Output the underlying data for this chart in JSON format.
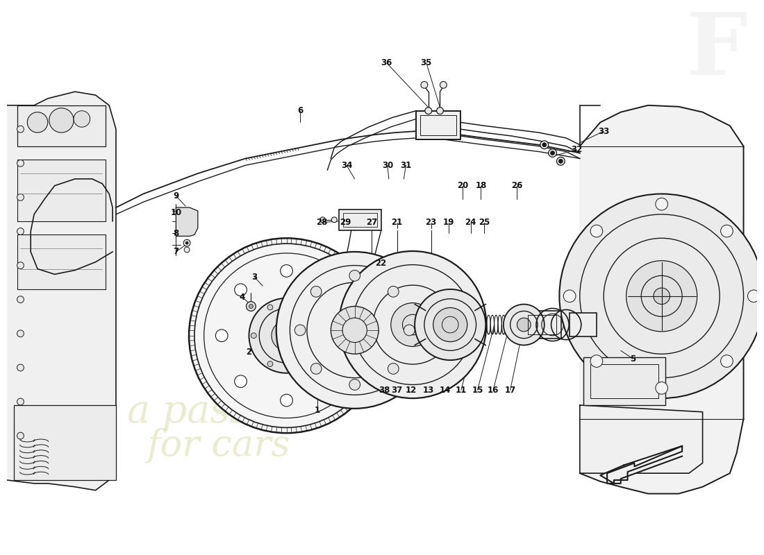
{
  "bg_color": "#ffffff",
  "lc": "#1a1a1a",
  "wm_color": "#d8d8a0",
  "wm_alpha": 0.5,
  "fig_w": 11.0,
  "fig_h": 8.0,
  "dpi": 100,
  "labels": [
    [
      "6",
      430,
      148
    ],
    [
      "9",
      248,
      273
    ],
    [
      "10",
      248,
      298
    ],
    [
      "8",
      248,
      328
    ],
    [
      "7",
      248,
      355
    ],
    [
      "4",
      345,
      422
    ],
    [
      "3",
      363,
      392
    ],
    [
      "2",
      355,
      502
    ],
    [
      "1",
      455,
      588
    ],
    [
      "36",
      557,
      78
    ],
    [
      "35",
      615,
      78
    ],
    [
      "34",
      498,
      228
    ],
    [
      "30",
      558,
      228
    ],
    [
      "31",
      585,
      228
    ],
    [
      "29",
      496,
      312
    ],
    [
      "28",
      462,
      312
    ],
    [
      "27",
      535,
      312
    ],
    [
      "21",
      572,
      312
    ],
    [
      "22",
      548,
      372
    ],
    [
      "23",
      622,
      312
    ],
    [
      "19",
      648,
      312
    ],
    [
      "20",
      668,
      258
    ],
    [
      "18",
      695,
      258
    ],
    [
      "24",
      680,
      312
    ],
    [
      "25",
      700,
      312
    ],
    [
      "26",
      748,
      258
    ],
    [
      "32",
      835,
      205
    ],
    [
      "33",
      875,
      178
    ],
    [
      "5",
      918,
      512
    ],
    [
      "38",
      553,
      558
    ],
    [
      "37",
      572,
      558
    ],
    [
      "12",
      593,
      558
    ],
    [
      "13",
      618,
      558
    ],
    [
      "14",
      643,
      558
    ],
    [
      "11",
      666,
      558
    ],
    [
      "15",
      690,
      558
    ],
    [
      "16",
      713,
      558
    ],
    [
      "17",
      738,
      558
    ]
  ]
}
